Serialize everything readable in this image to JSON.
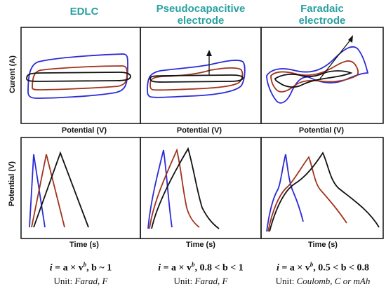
{
  "columns": [
    {
      "title_line1": "EDLC",
      "title_line2": "",
      "formula_prefix": "i",
      "formula_mid": " = a × v",
      "formula_exp": "b",
      "formula_suffix": ", b ~ 1",
      "unit_label": "Unit: ",
      "unit_value": "Farad, F"
    },
    {
      "title_line1": "Pseudocapacitive",
      "title_line2": "electrode",
      "formula_prefix": "i",
      "formula_mid": " = a × v",
      "formula_exp": "b",
      "formula_suffix": ", 0.8 < b < 1",
      "unit_label": "Unit: ",
      "unit_value": "Farad, F"
    },
    {
      "title_line1": "Faradaic",
      "title_line2": "electrode",
      "formula_prefix": "i",
      "formula_mid": " = a × v",
      "formula_exp": "b",
      "formula_suffix": ", 0.5 < b < 0.8",
      "unit_label": "Unit: ",
      "unit_value": "Coulomb, C or mAh"
    }
  ],
  "top_row": {
    "ylabel": "Curent (A)",
    "xlabel": "Potential (V)"
  },
  "bottom_row": {
    "ylabel": "Potential (V)",
    "xlabel": "Time (s)"
  },
  "colors": {
    "title": "#2aa0a0",
    "blue": "#2b2bd6",
    "red": "#a0341c",
    "black": "#111111"
  }
}
